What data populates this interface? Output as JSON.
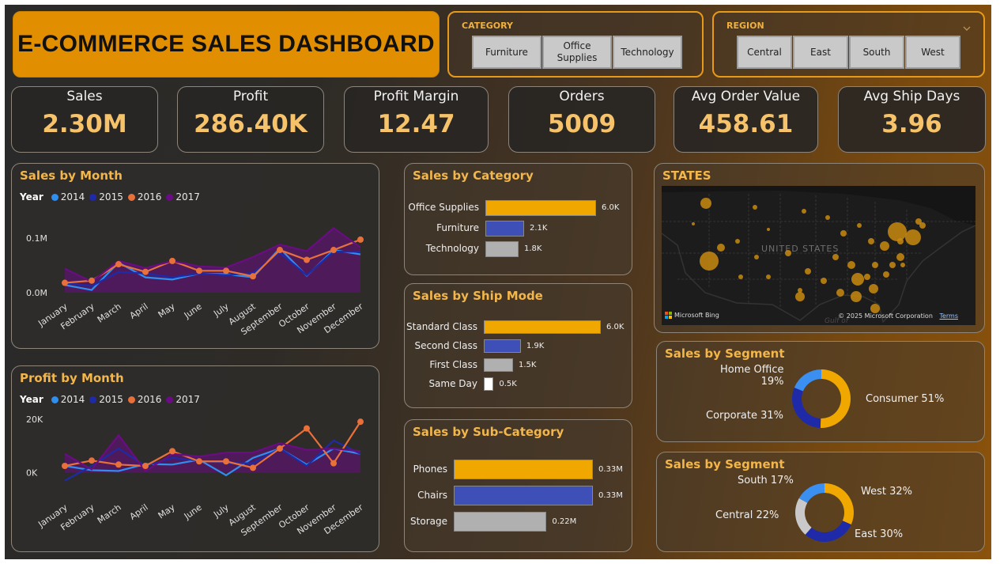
{
  "title": "E-COMMERCE SALES DASHBOARD",
  "category_slicer": {
    "title": "CATEGORY",
    "options": [
      "Furniture",
      "Office Supplies",
      "Technology"
    ]
  },
  "region_slicer": {
    "title": "REGION",
    "options": [
      "Central",
      "East",
      "South",
      "West"
    ]
  },
  "kpis": [
    {
      "label": "Sales",
      "value": "2.30M"
    },
    {
      "label": "Profit",
      "value": "286.40K"
    },
    {
      "label": "Profit Margin",
      "value": "12.47"
    },
    {
      "label": "Orders",
      "value": "5009"
    },
    {
      "label": "Avg Order Value",
      "value": "458.61"
    },
    {
      "label": "Avg Ship Days",
      "value": "3.96"
    }
  ],
  "colors": {
    "y2014": "#2e8ff0",
    "y2015": "#1f2aa8",
    "y2016": "#e8703a",
    "y2017": "#6a0d83",
    "accent": "#f3b64a",
    "bar_primary": "#f0a800",
    "bar_secondary": "#3f4fb8",
    "bar_tertiary": "#b0b0b0"
  },
  "sales_by_month": {
    "title": "Sales by Month",
    "legend_title": "Year",
    "years": [
      "2014",
      "2015",
      "2016",
      "2017"
    ],
    "months": [
      "January",
      "February",
      "March",
      "April",
      "May",
      "June",
      "July",
      "August",
      "September",
      "October",
      "November",
      "December"
    ],
    "ytick_labels": [
      "0.1M",
      "0.0M"
    ],
    "chart_data": {
      "type": "line",
      "x": [
        "January",
        "February",
        "March",
        "April",
        "May",
        "June",
        "July",
        "August",
        "September",
        "October",
        "November",
        "December"
      ],
      "ylim": [
        0,
        0.12
      ],
      "series": [
        {
          "name": "2014",
          "values": [
            0.014,
            0.005,
            0.055,
            0.028,
            0.024,
            0.035,
            0.034,
            0.028,
            0.081,
            0.031,
            0.078,
            0.07
          ]
        },
        {
          "name": "2015",
          "values": [
            0.018,
            0.012,
            0.038,
            0.035,
            0.028,
            0.035,
            0.032,
            0.036,
            0.073,
            0.032,
            0.075,
            0.075
          ]
        },
        {
          "name": "2016",
          "values": [
            0.018,
            0.022,
            0.052,
            0.038,
            0.058,
            0.04,
            0.04,
            0.03,
            0.078,
            0.06,
            0.078,
            0.097
          ]
        },
        {
          "name": "2017",
          "values": [
            0.044,
            0.02,
            0.058,
            0.045,
            0.058,
            0.048,
            0.046,
            0.065,
            0.088,
            0.076,
            0.118,
            0.083
          ]
        }
      ]
    }
  },
  "profit_by_month": {
    "title": "Profit by Month",
    "legend_title": "Year",
    "years": [
      "2014",
      "2015",
      "2016",
      "2017"
    ],
    "months": [
      "January",
      "February",
      "March",
      "April",
      "May",
      "June",
      "July",
      "August",
      "September",
      "October",
      "November",
      "December"
    ],
    "ytick_labels": [
      "20K",
      "0K"
    ],
    "chart_data": {
      "type": "line",
      "x": [
        "January",
        "February",
        "March",
        "April",
        "May",
        "June",
        "July",
        "August",
        "September",
        "October",
        "November",
        "December"
      ],
      "ylim": [
        -4000,
        22000
      ],
      "series": [
        {
          "name": "2014",
          "values": [
            2500,
            900,
            600,
            3200,
            3000,
            4800,
            -1000,
            5500,
            9000,
            3000,
            9000,
            7000
          ]
        },
        {
          "name": "2015",
          "values": [
            -3000,
            2500,
            9000,
            2500,
            5500,
            4500,
            3500,
            3500,
            9000,
            2500,
            12000,
            7000
          ]
        },
        {
          "name": "2016",
          "values": [
            2500,
            4500,
            3000,
            2500,
            8000,
            4200,
            4200,
            1800,
            9000,
            16500,
            3500,
            19000
          ]
        },
        {
          "name": "2017",
          "values": [
            7000,
            1200,
            14000,
            600,
            7000,
            6000,
            7500,
            7500,
            11000,
            8500,
            9000,
            8000
          ]
        }
      ]
    }
  },
  "sales_by_category": {
    "title": "Sales by Category",
    "chart_data": {
      "type": "bar",
      "categories": [
        "Office Supplies",
        "Furniture",
        "Technology"
      ],
      "values": [
        6.0,
        2.1,
        1.8
      ],
      "value_labels": [
        "6.0K",
        "2.1K",
        "1.8K"
      ]
    }
  },
  "sales_by_ship_mode": {
    "title": "Sales by Ship Mode",
    "chart_data": {
      "type": "bar",
      "categories": [
        "Standard Class",
        "Second Class",
        "First Class",
        "Same Day"
      ],
      "values": [
        6.0,
        1.9,
        1.5,
        0.5
      ],
      "value_labels": [
        "6.0K",
        "1.9K",
        "1.5K",
        "0.5K"
      ]
    }
  },
  "sales_by_subcategory": {
    "title": "Sales by Sub-Category",
    "chart_data": {
      "type": "bar",
      "categories": [
        "Phones",
        "Chairs",
        "Storage"
      ],
      "values": [
        0.33,
        0.33,
        0.22
      ],
      "value_labels": [
        "0.33M",
        "0.33M",
        "0.22M"
      ]
    }
  },
  "states_map": {
    "title": "STATES",
    "map_label": "UNITED STATES",
    "attribution_left": "Microsoft Bing",
    "attribution_right": "© 2025 Microsoft Corporation",
    "terms_link": "Terms",
    "gulf_label": "Gulf of"
  },
  "segment_donut": {
    "title": "Sales by Segment",
    "chart_data": {
      "type": "pie",
      "categories": [
        "Consumer",
        "Corporate",
        "Home Office"
      ],
      "values": [
        51,
        31,
        19
      ]
    },
    "labels": [
      "Consumer 51%",
      "Corporate 31%",
      "Home Office",
      "19%"
    ]
  },
  "region_donut": {
    "title": "Sales by Segment",
    "chart_data": {
      "type": "pie",
      "categories": [
        "West",
        "East",
        "Central",
        "South"
      ],
      "values": [
        32,
        30,
        22,
        17
      ]
    },
    "labels": [
      "West 32%",
      "East 30%",
      "Central 22%",
      "South 17%"
    ]
  }
}
